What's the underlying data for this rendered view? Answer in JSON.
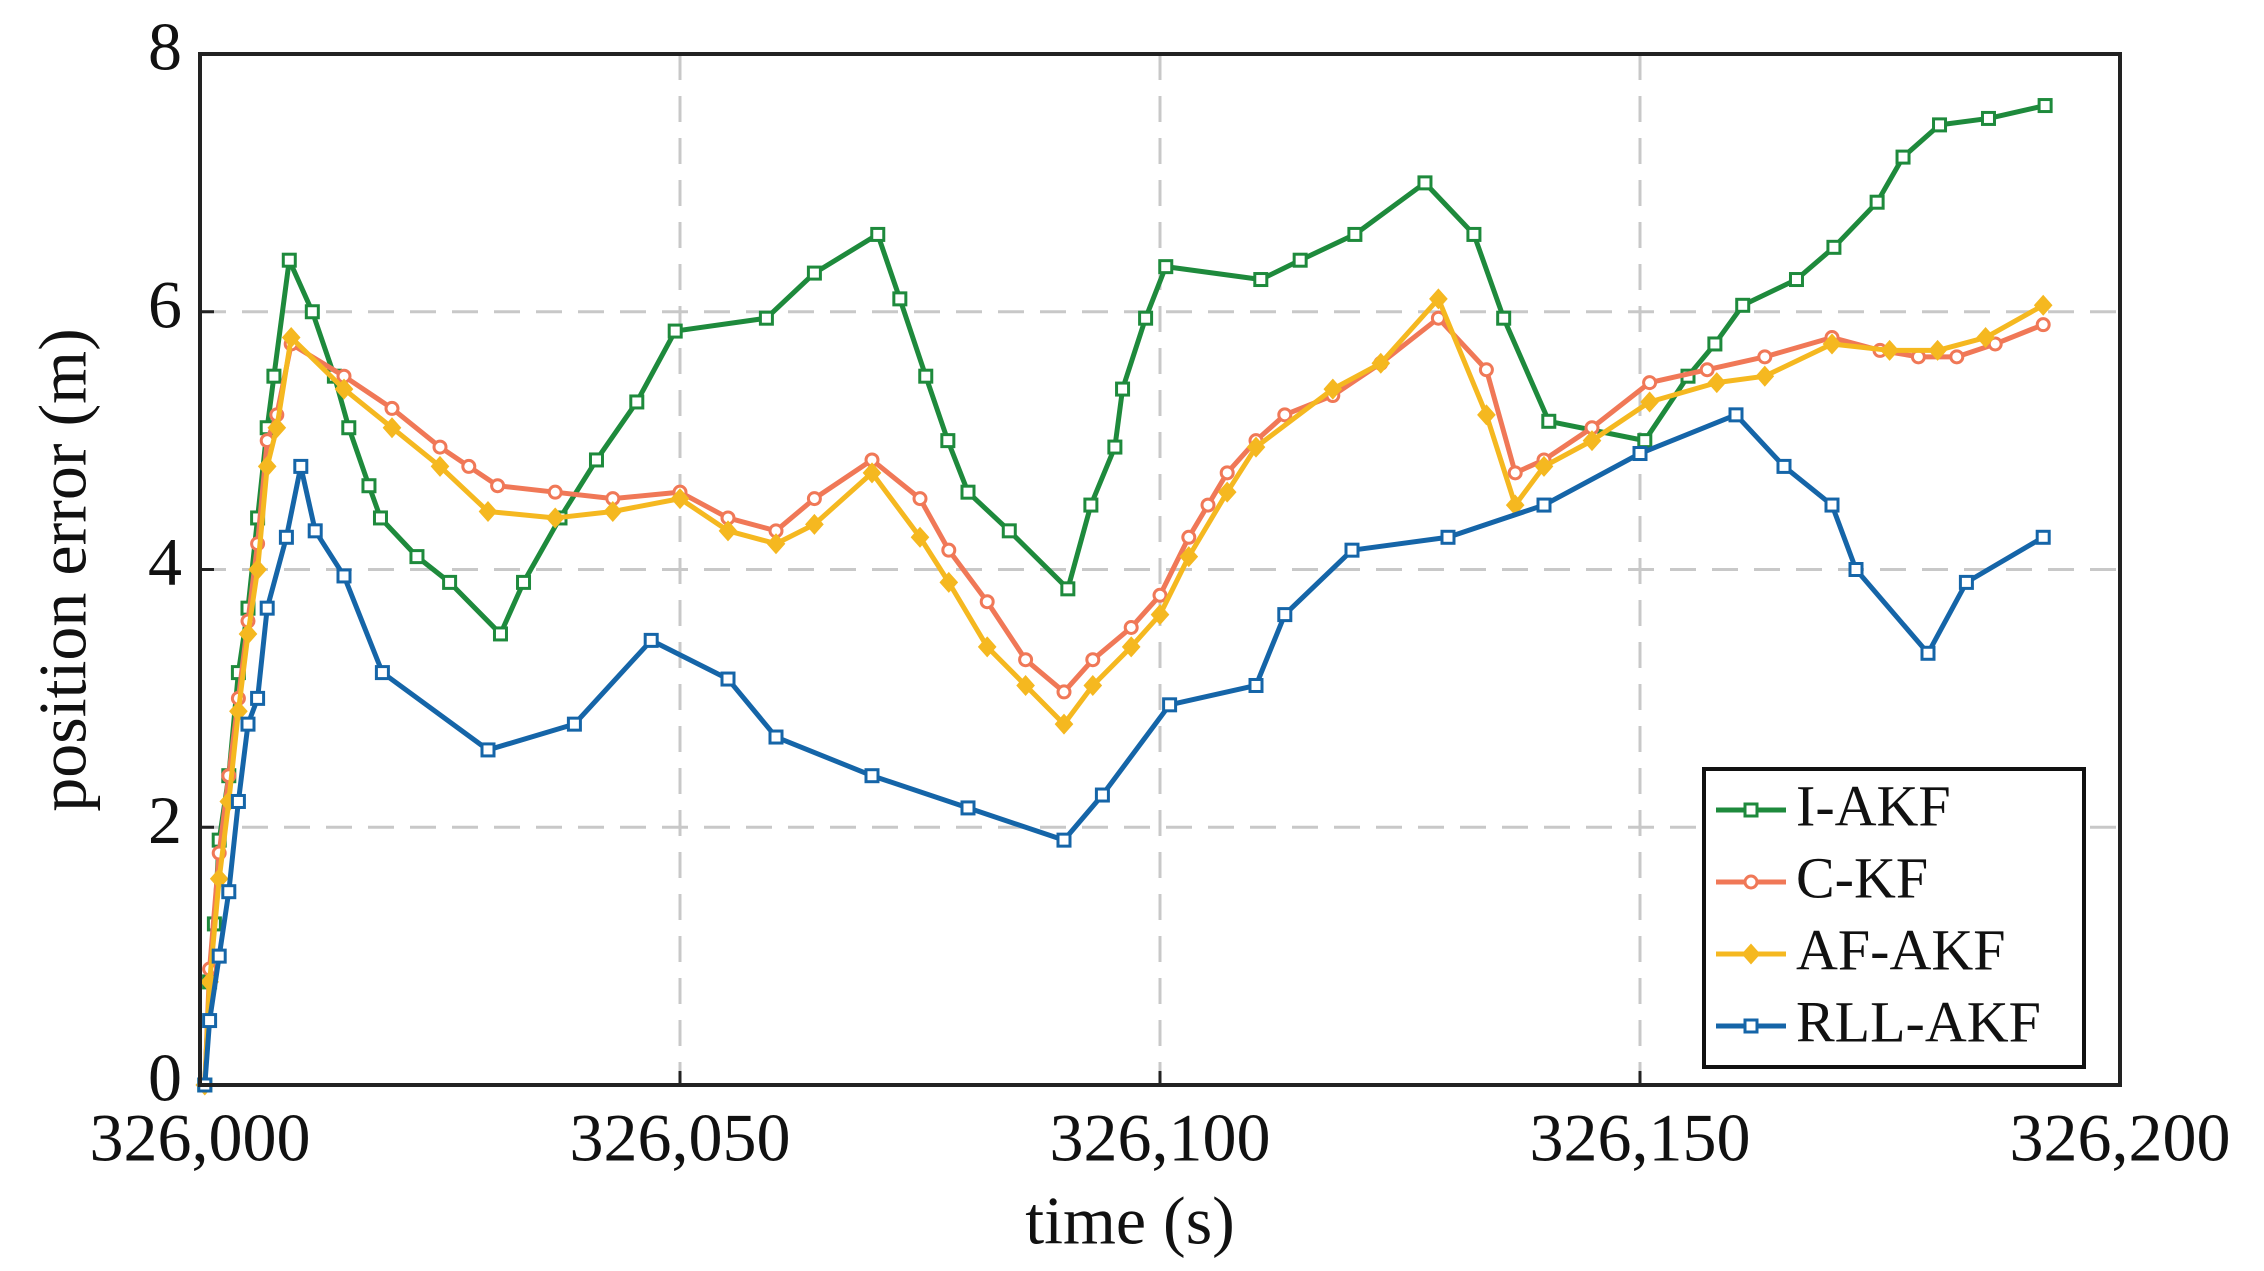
{
  "chart_data": {
    "type": "line",
    "xlabel": "time (s)",
    "ylabel": "position error (m)",
    "xlim": [
      326000,
      326200
    ],
    "ylim": [
      0,
      8
    ],
    "xticks": [
      {
        "value": 326000,
        "label": "326,000"
      },
      {
        "value": 326050,
        "label": "326,050"
      },
      {
        "value": 326100,
        "label": "326,100"
      },
      {
        "value": 326150,
        "label": "326,150"
      },
      {
        "value": 326200,
        "label": "326,200"
      }
    ],
    "yticks": [
      0,
      2,
      4,
      6,
      8
    ],
    "grid": true,
    "legend_position": "lower right",
    "series": [
      {
        "name": "I-AKF",
        "color": "#1e8a3c",
        "marker": "square",
        "x": [
          326000.5,
          326001,
          326001.5,
          326002,
          326003,
          326004,
          326005,
          326006,
          326007,
          326007.7,
          326009.3,
          326011.7,
          326014,
          326015.5,
          326017.6,
          326018.8,
          326022.6,
          326026,
          326031.3,
          326033.7,
          326037.5,
          326041.3,
          326045.5,
          326049.5,
          326059,
          326064,
          326070.6,
          326072.9,
          326075.6,
          326077.9,
          326080,
          326084.3,
          326090.4,
          326092.8,
          326095.3,
          326096.1,
          326098.5,
          326100.6,
          326110.5,
          326114.6,
          326120.3,
          326127.6,
          326132.7,
          326135.8,
          326140.5,
          326150.5,
          326155,
          326157.8,
          326160.7,
          326166.3,
          326170.2,
          326174.7,
          326177.4,
          326181.2,
          326186.3,
          326192.2
        ],
        "values": [
          0,
          0.8,
          1.25,
          1.9,
          2.4,
          3.2,
          3.7,
          4.4,
          5.1,
          5.5,
          6.4,
          6.0,
          5.5,
          5.1,
          4.65,
          4.4,
          4.1,
          3.9,
          3.5,
          3.9,
          4.4,
          4.85,
          5.3,
          5.85,
          5.95,
          6.3,
          6.6,
          6.1,
          5.5,
          5.0,
          4.6,
          4.3,
          3.85,
          4.5,
          4.95,
          5.4,
          5.95,
          6.35,
          6.25,
          6.4,
          6.6,
          7.0,
          6.6,
          5.95,
          5.15,
          5.0,
          5.5,
          5.75,
          6.05,
          6.25,
          6.5,
          6.85,
          7.2,
          7.45,
          7.5,
          7.6
        ]
      },
      {
        "name": "C-KF",
        "color": "#f07857",
        "marker": "circle",
        "x": [
          326000.5,
          326001,
          326002,
          326003,
          326004,
          326005,
          326006,
          326007,
          326008,
          326009.5,
          326015,
          326020,
          326025,
          326028,
          326031,
          326037,
          326043,
          326050,
          326055,
          326060,
          326064,
          326070,
          326075,
          326078,
          326082,
          326086,
          326090,
          326093,
          326097,
          326100,
          326103,
          326105,
          326107,
          326110,
          326113,
          326118,
          326123,
          326129,
          326134,
          326137,
          326140,
          326145,
          326151,
          326157,
          326163,
          326170,
          326175,
          326179,
          326183,
          326187,
          326192
        ],
        "values": [
          0,
          0.9,
          1.8,
          2.4,
          3.0,
          3.6,
          4.2,
          5.0,
          5.2,
          5.75,
          5.5,
          5.25,
          4.95,
          4.8,
          4.65,
          4.6,
          4.55,
          4.6,
          4.4,
          4.3,
          4.55,
          4.85,
          4.55,
          4.15,
          3.75,
          3.3,
          3.05,
          3.3,
          3.55,
          3.8,
          4.25,
          4.5,
          4.75,
          5.0,
          5.2,
          5.35,
          5.6,
          5.95,
          5.55,
          4.75,
          4.85,
          5.1,
          5.45,
          5.55,
          5.65,
          5.8,
          5.7,
          5.65,
          5.65,
          5.75,
          5.9
        ]
      },
      {
        "name": "AF-AKF",
        "color": "#f5b820",
        "marker": "diamond",
        "x": [
          326000.5,
          326001,
          326002,
          326003,
          326004,
          326005,
          326006,
          326007,
          326008,
          326009.5,
          326015,
          326020,
          326025,
          326030,
          326037,
          326043,
          326050,
          326055,
          326060,
          326064,
          326070,
          326075,
          326078,
          326082,
          326086,
          326090,
          326093,
          326097,
          326100,
          326103,
          326107,
          326110,
          326118,
          326123,
          326129,
          326134,
          326137,
          326140,
          326145,
          326151,
          326158,
          326163,
          326170,
          326176,
          326181,
          326186,
          326192
        ],
        "values": [
          0,
          0.8,
          1.6,
          2.2,
          2.9,
          3.5,
          4.0,
          4.8,
          5.1,
          5.8,
          5.4,
          5.1,
          4.8,
          4.45,
          4.4,
          4.45,
          4.55,
          4.3,
          4.2,
          4.35,
          4.75,
          4.25,
          3.9,
          3.4,
          3.1,
          2.8,
          3.1,
          3.4,
          3.65,
          4.1,
          4.6,
          4.95,
          5.4,
          5.6,
          6.1,
          5.2,
          4.5,
          4.8,
          5.0,
          5.3,
          5.45,
          5.5,
          5.75,
          5.7,
          5.7,
          5.8,
          6.05
        ]
      },
      {
        "name": "RLL-AKF",
        "color": "#1565a8",
        "marker": "square",
        "x": [
          326000.5,
          326001,
          326002,
          326003,
          326004,
          326005,
          326006,
          326007,
          326009,
          326010.5,
          326012,
          326015,
          326019,
          326030,
          326039,
          326047,
          326055,
          326060,
          326070,
          326080,
          326090,
          326094,
          326101,
          326110,
          326113,
          326120,
          326130,
          326140,
          326150,
          326160,
          326165,
          326170,
          326172.5,
          326180,
          326184,
          326192
        ],
        "values": [
          0,
          0.5,
          1.0,
          1.5,
          2.2,
          2.8,
          3.0,
          3.7,
          4.25,
          4.8,
          4.3,
          3.95,
          3.2,
          2.6,
          2.8,
          3.45,
          3.15,
          2.7,
          2.4,
          2.15,
          1.9,
          2.25,
          2.95,
          3.1,
          3.65,
          4.15,
          4.25,
          4.5,
          4.9,
          5.2,
          4.8,
          4.5,
          4.0,
          3.35,
          3.9,
          4.25
        ]
      }
    ]
  }
}
